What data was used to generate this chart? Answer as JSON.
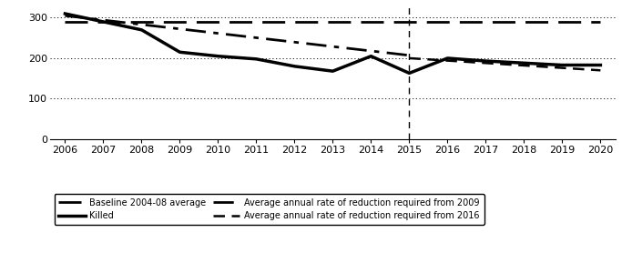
{
  "years_killed": [
    2006,
    2007,
    2008,
    2009,
    2010,
    2011,
    2012,
    2013,
    2014,
    2015,
    2016,
    2017,
    2018,
    2019,
    2020
  ],
  "killed": [
    310,
    290,
    270,
    215,
    205,
    198,
    180,
    168,
    205,
    163,
    200,
    193,
    188,
    183,
    183
  ],
  "baseline_year": [
    2006,
    2020
  ],
  "baseline_value": [
    290,
    290
  ],
  "rate2009_years": [
    2006,
    2015
  ],
  "rate2009_values": [
    305,
    207
  ],
  "rate2016_years": [
    2015,
    2020
  ],
  "rate2016_values": [
    200,
    170
  ],
  "vline_x": 2015,
  "ylim": [
    0,
    325
  ],
  "yticks": [
    0,
    100,
    200,
    300
  ],
  "xlim": [
    2005.6,
    2020.4
  ],
  "xticks": [
    2006,
    2007,
    2008,
    2009,
    2010,
    2011,
    2012,
    2013,
    2014,
    2015,
    2016,
    2017,
    2018,
    2019,
    2020
  ],
  "background_color": "#ffffff",
  "legend_labels": [
    "Baseline 2004-08 average",
    "Killed",
    "Average annual rate of reduction required from 2009",
    "Average annual rate of reduction required from 2016"
  ]
}
